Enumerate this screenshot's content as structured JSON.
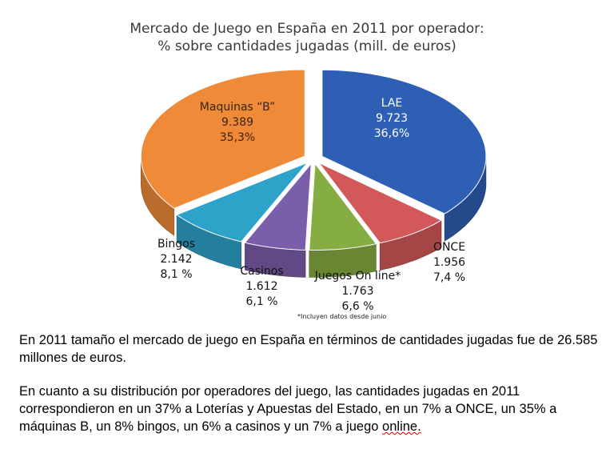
{
  "chart_data": {
    "type": "pie",
    "title": "Mercado de Juego en España en 2011 por operador:",
    "subtitle": "% sobre cantidades jugadas (mill. de euros)",
    "slices": [
      {
        "name": "LAE",
        "value": 9723,
        "value_label": "9.723",
        "pct_label": "36,6%",
        "color": "#2e5fb4"
      },
      {
        "name": "ONCE",
        "value": 1956,
        "value_label": "1.956",
        "pct_label": "7,4 %",
        "color": "#d2585a"
      },
      {
        "name": "Juegos On line*",
        "value": 1763,
        "value_label": "1.763",
        "pct_label": "6,6 %",
        "color": "#86ad41"
      },
      {
        "name": "Casinos",
        "value": 1612,
        "value_label": "1.612",
        "pct_label": "6,1 %",
        "color": "#7b5eab"
      },
      {
        "name": "Bingos",
        "value": 2142,
        "value_label": "2.142",
        "pct_label": "8,1 %",
        "color": "#2da3c9"
      },
      {
        "name": "Maquinas “B”",
        "value": 9389,
        "value_label": "9.389",
        "pct_label": "35,3%",
        "color": "#ef8a39"
      }
    ],
    "footnote": "*Incluyen datos desde junio"
  },
  "text": {
    "p1": "En 2011 tamaño el mercado de juego en España en términos de cantidades jugadas fue de 26.585 millones de euros.",
    "p2_main": "En cuanto a su distribución por operadores del juego, las cantidades jugadas en 2011 correspondieron en un 37% a Loterías y Apuestas del Estado, en un 7% a ONCE, un 35% a máquinas B, un 8% bingos, un 6% a casinos y un 7% a juego ",
    "p2_last": "online."
  }
}
